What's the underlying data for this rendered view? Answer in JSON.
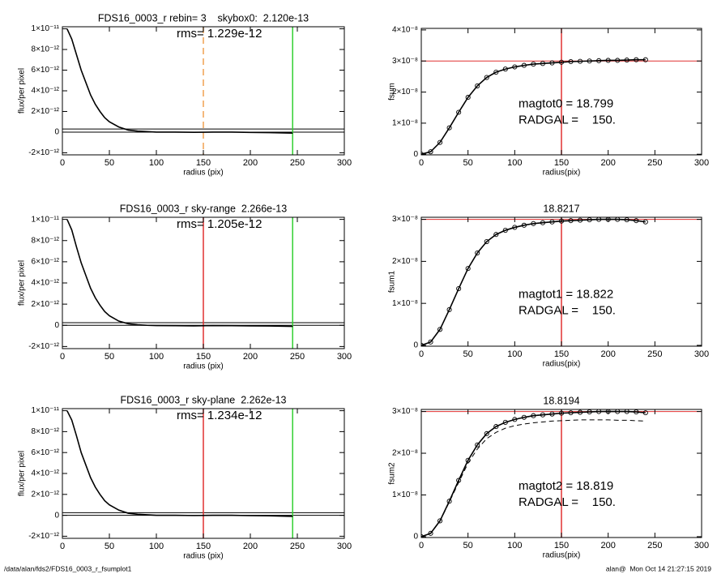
{
  "chart_data": [
    {
      "type": "line",
      "title": "FDS16_0003_r rebin= 3    skybox0:  2.120e-13",
      "annotations": [
        "rms= 1.229e-12"
      ],
      "x_label": "radius (pix)",
      "y_label": "flux/per pixel",
      "x": [
        5,
        10,
        15,
        20,
        25,
        30,
        35,
        40,
        45,
        50,
        60,
        70,
        80,
        90,
        100,
        120,
        140,
        160,
        180,
        200,
        220,
        245
      ],
      "series": [
        {
          "color": "#000000",
          "values": [
            1e-11,
            9e-12,
            7.5e-12,
            6e-12,
            4.8e-12,
            3.6e-12,
            2.7e-12,
            2e-12,
            1.4e-12,
            1e-12,
            5e-13,
            2e-13,
            1e-13,
            5e-14,
            0,
            0,
            -2e-14,
            0,
            0,
            -3e-14,
            -5e-14,
            -1e-13
          ]
        }
      ],
      "xlim": [
        0,
        300
      ],
      "ylim": [
        -2.2e-12,
        1.02e-11
      ],
      "xticks": [
        0,
        50,
        100,
        150,
        200,
        250,
        300
      ],
      "yticks": [
        {
          "value": -2e-12,
          "label": "-2×10⁻¹²"
        },
        0,
        {
          "value": 2e-12,
          "label": "2×10⁻¹²"
        },
        {
          "value": 4e-12,
          "label": "4×10⁻¹²"
        },
        {
          "value": 6e-12,
          "label": "6×10⁻¹²"
        },
        {
          "value": 8e-12,
          "label": "8×10⁻¹²"
        },
        {
          "value": 1e-11,
          "label": "1×10⁻¹¹"
        }
      ],
      "vlines": [
        {
          "x": 150,
          "color": "#f0a050",
          "dashed": true
        },
        {
          "x": 245,
          "color": "#30d030",
          "dashed": false
        }
      ],
      "hlines": [
        {
          "y": 3e-13,
          "color": "#000000"
        },
        {
          "y": 0,
          "color": "#000000"
        }
      ]
    },
    {
      "type": "line",
      "annotations": [
        "magtot0 = 18.799",
        "RADGAL =    150."
      ],
      "x_label": "radius(pix)",
      "y_label": "fsum",
      "x": [
        0,
        10,
        20,
        30,
        40,
        50,
        60,
        70,
        80,
        90,
        100,
        110,
        120,
        130,
        140,
        150,
        160,
        170,
        180,
        190,
        200,
        210,
        220,
        230,
        240
      ],
      "series": [
        {
          "color": "#000000",
          "marker": "circle",
          "values": [
            0,
            8e-10,
            3.8e-09,
            8.5e-09,
            1.35e-08,
            1.83e-08,
            2.2e-08,
            2.47e-08,
            2.64e-08,
            2.74e-08,
            2.81e-08,
            2.86e-08,
            2.9e-08,
            2.92e-08,
            2.94e-08,
            2.96e-08,
            2.98e-08,
            2.99e-08,
            3e-08,
            3.01e-08,
            3.02e-08,
            3.02e-08,
            3.03e-08,
            3.04e-08,
            3.04e-08
          ]
        }
      ],
      "xlim": [
        0,
        300
      ],
      "ylim": [
        -2e-10,
        4.05e-08
      ],
      "xticks": [
        0,
        50,
        100,
        150,
        200,
        250,
        300
      ],
      "yticks": [
        0,
        {
          "value": 1e-08,
          "label": "1×10⁻⁸"
        },
        {
          "value": 2e-08,
          "label": "2×10⁻⁸"
        },
        {
          "value": 3e-08,
          "label": "3×10⁻⁸"
        },
        {
          "value": 4e-08,
          "label": "4×10⁻⁸"
        }
      ],
      "vlines": [
        {
          "x": 150,
          "color": "#e03030",
          "dashed": false
        }
      ],
      "hlines": [
        {
          "y": 3e-08,
          "color": "#e03030"
        }
      ]
    },
    {
      "type": "line",
      "title": "FDS16_0003_r sky-range  2.266e-13",
      "annotations": [
        "rms= 1.205e-12"
      ],
      "x_label": "radius (pix)",
      "y_label": "flux/per pixel",
      "x": [
        5,
        10,
        15,
        20,
        25,
        30,
        35,
        40,
        45,
        50,
        60,
        70,
        80,
        90,
        100,
        120,
        140,
        160,
        180,
        200,
        220,
        245
      ],
      "series": [
        {
          "color": "#000000",
          "values": [
            1e-11,
            9e-12,
            7.4e-12,
            5.9e-12,
            4.7e-12,
            3.5e-12,
            2.6e-12,
            1.9e-12,
            1.3e-12,
            9e-13,
            4e-13,
            1.5e-13,
            5e-14,
            0,
            -2e-14,
            -3e-14,
            -5e-14,
            -2e-14,
            -3e-14,
            -5e-14,
            -6e-14,
            -1e-13
          ]
        }
      ],
      "xlim": [
        0,
        300
      ],
      "ylim": [
        -2.2e-12,
        1.02e-11
      ],
      "xticks": [
        0,
        50,
        100,
        150,
        200,
        250,
        300
      ],
      "yticks": [
        {
          "value": -2e-12,
          "label": "-2×10⁻¹²"
        },
        0,
        {
          "value": 2e-12,
          "label": "2×10⁻¹²"
        },
        {
          "value": 4e-12,
          "label": "4×10⁻¹²"
        },
        {
          "value": 6e-12,
          "label": "6×10⁻¹²"
        },
        {
          "value": 8e-12,
          "label": "8×10⁻¹²"
        },
        {
          "value": 1e-11,
          "label": "1×10⁻¹¹"
        }
      ],
      "vlines": [
        {
          "x": 150,
          "color": "#e03030",
          "dashed": false
        },
        {
          "x": 245,
          "color": "#30d030",
          "dashed": false
        }
      ],
      "hlines": [
        {
          "y": 2.5e-13,
          "color": "#000000"
        },
        {
          "y": 0,
          "color": "#000000"
        }
      ]
    },
    {
      "type": "line",
      "title": "18.8217",
      "annotations": [
        "magtot1 = 18.822",
        "RADGAL =    150."
      ],
      "x_label": "radius(pix)",
      "y_label": "fsum1",
      "x": [
        0,
        10,
        20,
        30,
        40,
        50,
        60,
        70,
        80,
        90,
        100,
        110,
        120,
        130,
        140,
        150,
        160,
        170,
        180,
        190,
        200,
        210,
        220,
        230,
        240
      ],
      "series": [
        {
          "color": "#000000",
          "marker": "circle",
          "values": [
            0,
            8e-10,
            3.8e-09,
            8.5e-09,
            1.35e-08,
            1.83e-08,
            2.2e-08,
            2.47e-08,
            2.64e-08,
            2.74e-08,
            2.81e-08,
            2.86e-08,
            2.9e-08,
            2.92e-08,
            2.94e-08,
            2.96e-08,
            2.97e-08,
            2.98e-08,
            2.99e-08,
            3e-08,
            3e-08,
            3e-08,
            2.99e-08,
            2.97e-08,
            2.94e-08
          ]
        }
      ],
      "xlim": [
        0,
        300
      ],
      "ylim": [
        -2e-10,
        3.05e-08
      ],
      "xticks": [
        0,
        50,
        100,
        150,
        200,
        250,
        300
      ],
      "yticks": [
        0,
        {
          "value": 1e-08,
          "label": "1×10⁻⁸"
        },
        {
          "value": 2e-08,
          "label": "2×10⁻⁸"
        },
        {
          "value": 3e-08,
          "label": "3×10⁻⁸"
        }
      ],
      "vlines": [
        {
          "x": 150,
          "color": "#e03030",
          "dashed": false
        }
      ],
      "hlines": [
        {
          "y": 3e-08,
          "color": "#e03030"
        }
      ]
    },
    {
      "type": "line",
      "title": "FDS16_0003_r sky-plane  2.262e-13",
      "annotations": [
        "rms= 1.234e-12"
      ],
      "x_label": "radius (pix)",
      "y_label": "flux/per pixel",
      "x": [
        5,
        10,
        15,
        20,
        25,
        30,
        35,
        40,
        45,
        50,
        60,
        70,
        80,
        90,
        100,
        120,
        140,
        160,
        180,
        200,
        220,
        245
      ],
      "series": [
        {
          "color": "#000000",
          "values": [
            1e-11,
            9.1e-12,
            7.6e-12,
            6e-12,
            4.8e-12,
            3.6e-12,
            2.7e-12,
            2e-12,
            1.4e-12,
            1e-12,
            5e-13,
            2e-13,
            1e-13,
            5e-14,
            0,
            0,
            -2e-14,
            0,
            0,
            -3e-14,
            -5e-14,
            -1e-13
          ]
        }
      ],
      "xlim": [
        0,
        300
      ],
      "ylim": [
        -2.2e-12,
        1.02e-11
      ],
      "xticks": [
        0,
        50,
        100,
        150,
        200,
        250,
        300
      ],
      "yticks": [
        {
          "value": -2e-12,
          "label": "-2×10⁻¹²"
        },
        0,
        {
          "value": 2e-12,
          "label": "2×10⁻¹²"
        },
        {
          "value": 4e-12,
          "label": "4×10⁻¹²"
        },
        {
          "value": 6e-12,
          "label": "6×10⁻¹²"
        },
        {
          "value": 8e-12,
          "label": "8×10⁻¹²"
        },
        {
          "value": 1e-11,
          "label": "1×10⁻¹¹"
        }
      ],
      "vlines": [
        {
          "x": 150,
          "color": "#e03030",
          "dashed": false
        },
        {
          "x": 245,
          "color": "#30d030",
          "dashed": false
        }
      ],
      "hlines": [
        {
          "y": 2.5e-13,
          "color": "#000000"
        },
        {
          "y": 0,
          "color": "#000000"
        }
      ]
    },
    {
      "type": "line",
      "title": "18.8194",
      "annotations": [
        "magtot2 = 18.819",
        "RADGAL =    150."
      ],
      "x_label": "radius(pix)",
      "y_label": "fsum2",
      "x": [
        0,
        10,
        20,
        30,
        40,
        50,
        60,
        70,
        80,
        90,
        100,
        110,
        120,
        130,
        140,
        150,
        160,
        170,
        180,
        190,
        200,
        210,
        220,
        230,
        240
      ],
      "series": [
        {
          "color": "#000000",
          "marker": "circle",
          "values": [
            0,
            8e-10,
            3.8e-09,
            8.5e-09,
            1.35e-08,
            1.83e-08,
            2.2e-08,
            2.47e-08,
            2.64e-08,
            2.74e-08,
            2.81e-08,
            2.86e-08,
            2.9e-08,
            2.92e-08,
            2.94e-08,
            2.96e-08,
            2.97e-08,
            2.98e-08,
            2.99e-08,
            3e-08,
            3e-08,
            3e-08,
            3e-08,
            2.99e-08,
            2.97e-08
          ]
        },
        {
          "color": "#000000",
          "dashed": true,
          "values": [
            0,
            8e-10,
            3.7e-09,
            8.3e-09,
            1.3e-08,
            1.76e-08,
            2.1e-08,
            2.35e-08,
            2.5e-08,
            2.6e-08,
            2.66e-08,
            2.7e-08,
            2.73e-08,
            2.75e-08,
            2.77e-08,
            2.78e-08,
            2.79e-08,
            2.8e-08,
            2.8e-08,
            2.8e-08,
            2.8e-08,
            2.79e-08,
            2.79e-08,
            2.78e-08,
            2.77e-08
          ]
        }
      ],
      "xlim": [
        0,
        300
      ],
      "ylim": [
        -2e-10,
        3.05e-08
      ],
      "xticks": [
        0,
        50,
        100,
        150,
        200,
        250,
        300
      ],
      "yticks": [
        0,
        {
          "value": 1e-08,
          "label": "1×10⁻⁸"
        },
        {
          "value": 2e-08,
          "label": "2×10⁻⁸"
        },
        {
          "value": 3e-08,
          "label": "3×10⁻⁸"
        }
      ],
      "vlines": [
        {
          "x": 150,
          "color": "#e03030",
          "dashed": false
        }
      ],
      "hlines": [
        {
          "y": 3e-08,
          "color": "#e03030"
        }
      ]
    }
  ],
  "footer": {
    "left": "/data/alan/fds2/FDS16_0003_r_fsumplot1",
    "right": "alan@  Mon Oct 14 21:27:15 2019"
  }
}
